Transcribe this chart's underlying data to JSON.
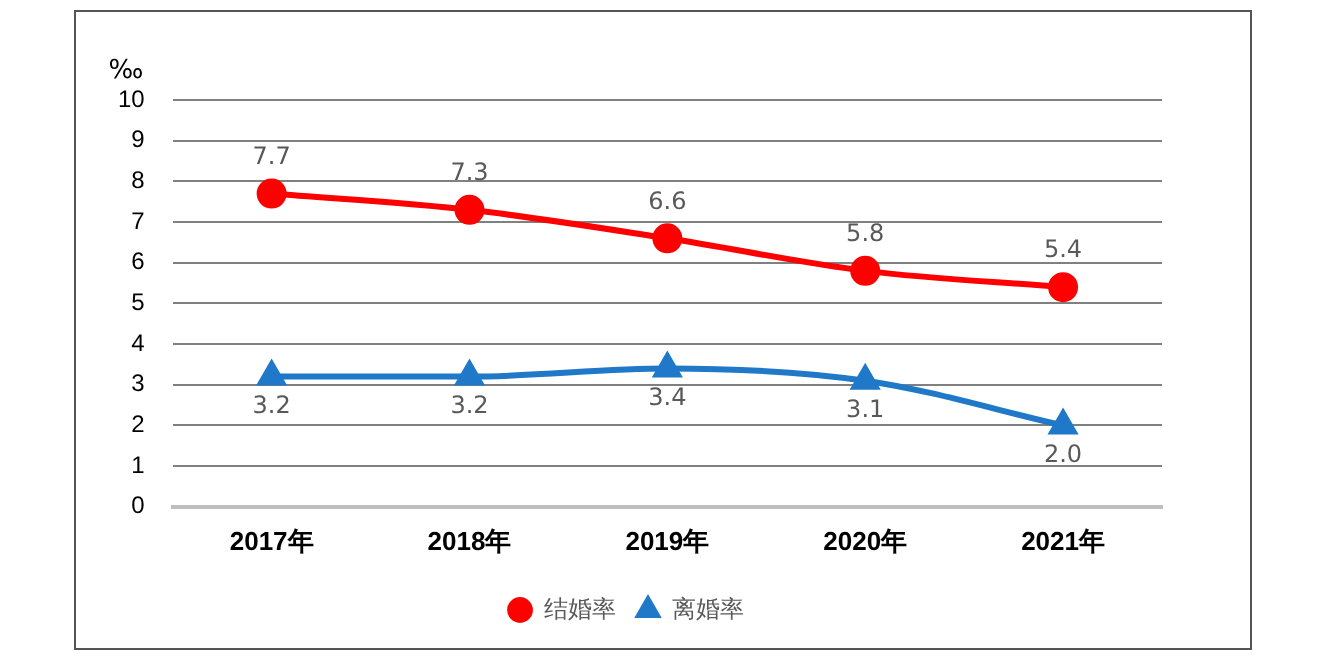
{
  "chart_data": {
    "type": "line",
    "ylabel": "‰",
    "categories": [
      "2017年",
      "2018年",
      "2019年",
      "2020年",
      "2021年"
    ],
    "series": [
      {
        "name": "结婚率",
        "color": "#ff0000",
        "marker": "circle",
        "values": [
          7.7,
          7.3,
          6.6,
          5.8,
          5.4
        ],
        "value_labels": [
          "7.7",
          "7.3",
          "6.6",
          "5.8",
          "5.4"
        ]
      },
      {
        "name": "离婚率",
        "color": "#1f78c8",
        "marker": "triangle",
        "values": [
          3.2,
          3.2,
          3.4,
          3.1,
          2.0
        ],
        "value_labels": [
          "3.2",
          "3.2",
          "3.4",
          "3.1",
          "2.0"
        ]
      }
    ],
    "ylim": [
      0,
      10
    ],
    "yticks": [
      0,
      1,
      2,
      3,
      4,
      5,
      6,
      7,
      8,
      9,
      10
    ],
    "grid": "y",
    "legend": "bottom"
  }
}
